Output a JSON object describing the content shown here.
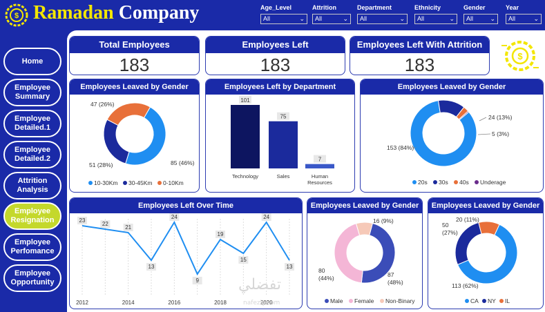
{
  "brand": {
    "title_a": "Ramadan",
    "title_b": "Company"
  },
  "filters": [
    {
      "label": "Age_Level",
      "value": "All"
    },
    {
      "label": "Attrition",
      "value": "All"
    },
    {
      "label": "Department",
      "value": "All"
    },
    {
      "label": "Ethnicity",
      "value": "All"
    },
    {
      "label": "Gender",
      "value": "All"
    },
    {
      "label": "Year",
      "value": "All"
    }
  ],
  "nav": [
    {
      "label": "Home"
    },
    {
      "label": "Employee Summary"
    },
    {
      "label": "Employee Detailed.1"
    },
    {
      "label": "Employee Detailed.2"
    },
    {
      "label": "Attrition Analysis"
    },
    {
      "label": "Employee Resignation",
      "active": true
    },
    {
      "label": "Employee Perfomance"
    },
    {
      "label": "Employee Opportunity"
    }
  ],
  "kpis": [
    {
      "title": "Total Employees",
      "value": "183"
    },
    {
      "title": "Employees Left",
      "value": "183"
    },
    {
      "title": "Employees Left With Attrition",
      "value": "183"
    }
  ],
  "colors": {
    "brand_blue": "#1a2aa8",
    "brand_yellow": "#f3e600",
    "active_nav": "#c4d82c"
  },
  "chart_data": [
    {
      "type": "pie",
      "variant": "donut",
      "title": "Employees Leaved by Gender",
      "categories": [
        "10-30Km",
        "30-45Km",
        "0-10Km"
      ],
      "values": [
        85,
        51,
        47
      ],
      "labels": [
        "85 (46%)",
        "51 (28%)",
        "47 (26%)"
      ],
      "colors": [
        "#1f8ef1",
        "#1b2a9c",
        "#e8703a"
      ],
      "legend": "bottom"
    },
    {
      "type": "bar",
      "title": "Employees Left by Department",
      "categories": [
        "Technology",
        "Sales",
        "Human Resources"
      ],
      "values": [
        101,
        75,
        7
      ],
      "colors": [
        "#0d1560",
        "#1b2a9c",
        "#3a58c8"
      ]
    },
    {
      "type": "pie",
      "variant": "donut",
      "title": "Employees Leaved by Gender",
      "categories": [
        "20s",
        "30s",
        "40s",
        "Underage"
      ],
      "values": [
        153,
        24,
        5,
        1
      ],
      "labels": [
        "153 (84%)",
        "24 (13%)",
        "5 (3%)",
        ""
      ],
      "colors": [
        "#1f8ef1",
        "#1b2a9c",
        "#e8703a",
        "#6a2c8c"
      ],
      "legend": "bottom"
    },
    {
      "type": "line",
      "title": "Employees Left Over Time",
      "x": [
        2012,
        2013,
        2014,
        2015,
        2016,
        2017,
        2018,
        2019,
        2020,
        2021
      ],
      "values": [
        23,
        22,
        21,
        13,
        24,
        9,
        19,
        15,
        24,
        13
      ],
      "xticks": [
        "2012",
        "2014",
        "2016",
        "2018",
        "2020"
      ],
      "color": "#1f8ef1"
    },
    {
      "type": "pie",
      "variant": "donut",
      "title": "Employees Leaved by Gender",
      "categories": [
        "Male",
        "Female",
        "Non-Binary"
      ],
      "values": [
        87,
        80,
        16
      ],
      "labels": [
        "87 (48%)",
        "80 (44%)",
        "16 (9%)"
      ],
      "colors": [
        "#3b4db8",
        "#f4b6d6",
        "#f6c9b8"
      ],
      "legend": "bottom"
    },
    {
      "type": "pie",
      "variant": "donut",
      "title": "Employees Leaved by Gender",
      "categories": [
        "CA",
        "NY",
        "IL"
      ],
      "values": [
        113,
        50,
        20
      ],
      "labels": [
        "113 (62%)",
        "50 (27%)",
        "20 (11%)"
      ],
      "colors": [
        "#1f8ef1",
        "#1b2a9c",
        "#e8703a"
      ],
      "legend": "bottom"
    }
  ],
  "watermark": {
    "text": "تفضلي",
    "domain": "nafezly.com"
  }
}
